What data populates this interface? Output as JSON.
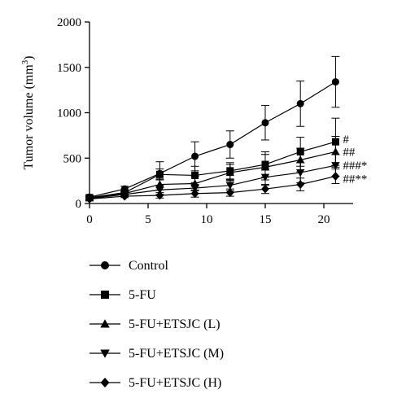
{
  "chart_data": {
    "type": "line",
    "title": "",
    "xlabel": "",
    "ylabel": "Tumor volume (mm",
    "ylabel_sup": "3",
    "ylabel_close": ")",
    "xlim": [
      0,
      22.5
    ],
    "ylim": [
      0,
      2000
    ],
    "xticks": [
      0,
      5,
      10,
      15,
      20
    ],
    "yticks": [
      0,
      500,
      1000,
      1500,
      2000
    ],
    "grid": false,
    "legend_position": "bottom",
    "x": [
      0,
      3,
      6,
      9,
      12,
      15,
      18,
      21
    ],
    "series": [
      {
        "name": "Control",
        "marker": "circle",
        "values": [
          70,
          160,
          330,
          520,
          650,
          890,
          1100,
          1340
        ],
        "errors": [
          20,
          30,
          130,
          160,
          150,
          190,
          250,
          280
        ],
        "annotation": ""
      },
      {
        "name": "5-FU",
        "marker": "square",
        "values": [
          65,
          120,
          320,
          310,
          360,
          430,
          570,
          680
        ],
        "errors": [
          15,
          25,
          60,
          100,
          90,
          140,
          160,
          260
        ],
        "annotation": "#"
      },
      {
        "name": "5-FU+ETSJC (L)",
        "marker": "triangle-up",
        "values": [
          60,
          110,
          210,
          220,
          340,
          400,
          480,
          570
        ],
        "errors": [
          15,
          20,
          60,
          80,
          90,
          140,
          130,
          170
        ],
        "annotation": "##"
      },
      {
        "name": "5-FU+ETSJC (M)",
        "marker": "triangle-down",
        "values": [
          55,
          100,
          150,
          170,
          200,
          290,
          340,
          420
        ],
        "errors": [
          15,
          20,
          50,
          60,
          60,
          90,
          110,
          120
        ],
        "annotation": "###*"
      },
      {
        "name": "5-FU+ETSJC (H)",
        "marker": "diamond",
        "values": [
          50,
          80,
          90,
          110,
          120,
          160,
          210,
          300
        ],
        "errors": [
          15,
          15,
          30,
          40,
          40,
          50,
          70,
          80
        ],
        "annotation": "##**"
      }
    ]
  }
}
